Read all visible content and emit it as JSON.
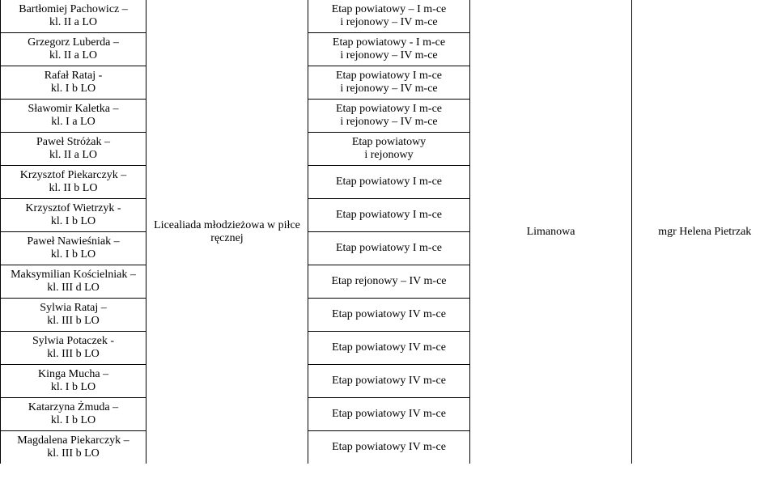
{
  "competition": "Licealiada młodzieżowa w piłce ręcznej",
  "place": "Limanowa",
  "teacher": "mgr Helena Pietrzak",
  "students": [
    {
      "name": "Bartłomiej Pachowicz –",
      "cls": "kl. II a LO",
      "result_l1": "Etap powiatowy – I m-ce",
      "result_l2": "i rejonowy – IV m-ce"
    },
    {
      "name": "Grzegorz Luberda –",
      "cls": "kl. II a LO",
      "result_l1": "Etap powiatowy - I m-ce",
      "result_l2": "i rejonowy – IV m-ce"
    },
    {
      "name": "Rafał Rataj -",
      "cls": "kl. I b LO",
      "result_l1": "Etap powiatowy I m-ce",
      "result_l2": "i rejonowy – IV m-ce"
    },
    {
      "name": "Sławomir Kaletka –",
      "cls": "kl. I a LO",
      "result_l1": "Etap powiatowy I m-ce",
      "result_l2": "i rejonowy – IV m-ce"
    },
    {
      "name": "Paweł  Stróżak –",
      "cls": "kl. II a LO",
      "result_l1": "Etap powiatowy",
      "result_l2": "i rejonowy"
    },
    {
      "name": "Krzysztof Piekarczyk –",
      "cls": "kl. II b LO",
      "result_l1": "Etap powiatowy I m-ce",
      "result_l2": ""
    },
    {
      "name": "Krzysztof Wietrzyk -",
      "cls": "kl. I b LO",
      "result_l1": "Etap powiatowy I m-ce",
      "result_l2": ""
    },
    {
      "name": "Paweł  Nawieśniak –",
      "cls": "kl. I b LO",
      "result_l1": "Etap powiatowy I m-ce",
      "result_l2": ""
    },
    {
      "name": "Maksymilian Kościelniak –",
      "cls": "kl. III d LO",
      "result_l1": "Etap rejonowy – IV m-ce",
      "result_l2": ""
    },
    {
      "name": "Sylwia Rataj –",
      "cls": "kl. III b LO",
      "result_l1": "Etap powiatowy IV m-ce",
      "result_l2": ""
    },
    {
      "name": "Sylwia Potaczek -",
      "cls": "kl. III b LO",
      "result_l1": "Etap powiatowy IV m-ce",
      "result_l2": ""
    },
    {
      "name": "Kinga Mucha –",
      "cls": "kl. I b LO",
      "result_l1": "Etap powiatowy IV m-ce",
      "result_l2": ""
    },
    {
      "name": "Katarzyna Żmuda –",
      "cls": "kl. I b LO",
      "result_l1": "Etap powiatowy IV m-ce",
      "result_l2": ""
    },
    {
      "name": "Magdalena Piekarczyk –",
      "cls": "kl. III b LO",
      "result_l1": "Etap powiatowy IV m-ce",
      "result_l2": ""
    }
  ]
}
